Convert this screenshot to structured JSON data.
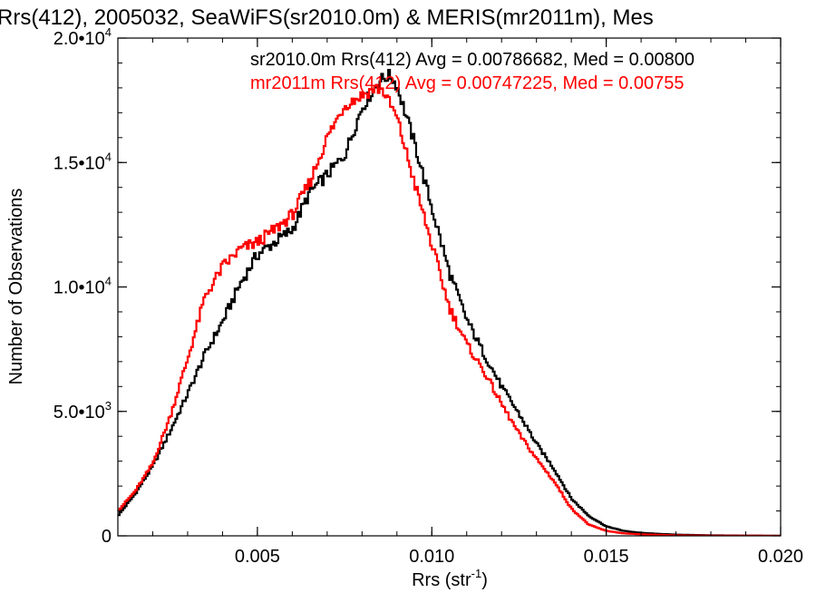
{
  "chart_data": {
    "type": "line",
    "title": "Rrs(412), 2005032, SeaWiFS(sr2010.0m) & MERIS(mr2011m), Mes",
    "xlabel": "Rrs (str",
    "xlabel_sup": "-1",
    "xlabel_end": ")",
    "ylabel": "Number of Observations",
    "xlim": [
      0.001,
      0.02
    ],
    "ylim": [
      0,
      20000
    ],
    "x_ticks": [
      {
        "value": 0.005,
        "label": "0.005"
      },
      {
        "value": 0.01,
        "label": "0.010"
      },
      {
        "value": 0.015,
        "label": "0.015"
      },
      {
        "value": 0.02,
        "label": "0.020"
      }
    ],
    "y_ticks": [
      {
        "value": 0,
        "label": "0"
      },
      {
        "value": 5000,
        "mant": "5.0•10",
        "exp": "3"
      },
      {
        "value": 10000,
        "mant": "1.0•10",
        "exp": "4"
      },
      {
        "value": 15000,
        "mant": "1.5•10",
        "exp": "4"
      },
      {
        "value": 20000,
        "mant": "2.0•10",
        "exp": "4"
      }
    ],
    "legend_placement": "top-right",
    "series": [
      {
        "name": "sr2010.0m",
        "legend": "sr2010.0m Rrs(412) Avg = 0.00786682, Med = 0.00800",
        "color": "#000000",
        "x": [
          0.001,
          0.0015,
          0.002,
          0.0025,
          0.003,
          0.0035,
          0.004,
          0.0045,
          0.005,
          0.0055,
          0.006,
          0.0065,
          0.007,
          0.0075,
          0.008,
          0.0085,
          0.0088,
          0.009,
          0.0095,
          0.01,
          0.0105,
          0.011,
          0.0115,
          0.012,
          0.0125,
          0.013,
          0.0135,
          0.014,
          0.0145,
          0.015,
          0.0155,
          0.016,
          0.0165,
          0.017,
          0.018,
          0.019,
          0.02
        ],
        "y": [
          800,
          1700,
          2800,
          4200,
          5700,
          7300,
          8600,
          10100,
          11300,
          11800,
          12300,
          13800,
          14500,
          15300,
          17200,
          18300,
          18500,
          18100,
          15800,
          13200,
          10600,
          8700,
          7300,
          6000,
          4900,
          3700,
          2700,
          1500,
          800,
          380,
          200,
          120,
          80,
          50,
          20,
          10,
          5
        ]
      },
      {
        "name": "mr2011m",
        "legend": "mr2011m Rrs(412) Avg = 0.00747225, Med = 0.00755",
        "color": "#ff0000",
        "x": [
          0.001,
          0.0015,
          0.002,
          0.0025,
          0.003,
          0.0035,
          0.004,
          0.0045,
          0.005,
          0.0055,
          0.006,
          0.0065,
          0.007,
          0.0075,
          0.008,
          0.0084,
          0.0086,
          0.009,
          0.0095,
          0.01,
          0.0105,
          0.011,
          0.0115,
          0.012,
          0.0125,
          0.013,
          0.0135,
          0.014,
          0.0145,
          0.015,
          0.0155,
          0.016,
          0.0165,
          0.017,
          0.018,
          0.019,
          0.02
        ],
        "y": [
          1000,
          1800,
          2900,
          4800,
          7100,
          9600,
          10800,
          11500,
          11800,
          12300,
          12900,
          14200,
          16000,
          17300,
          17700,
          18000,
          17900,
          16800,
          14200,
          11700,
          9200,
          7700,
          6600,
          5300,
          4100,
          3100,
          2200,
          1100,
          450,
          200,
          100,
          60,
          40,
          20,
          8,
          4,
          2
        ]
      }
    ]
  }
}
